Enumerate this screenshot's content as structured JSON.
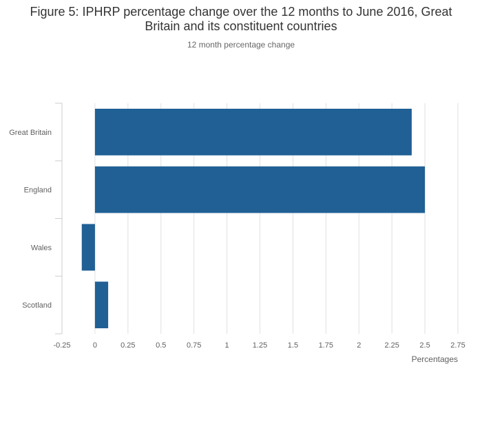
{
  "chart_data": {
    "type": "bar",
    "orientation": "horizontal",
    "title": "Figure 5: IPHRP percentage change over the 12 months to June 2016, Great Britain and its constituent countries",
    "subtitle": "12 month percentage change",
    "categories": [
      "Great Britain",
      "England",
      "Wales",
      "Scotland"
    ],
    "values": [
      2.4,
      2.5,
      -0.1,
      0.1
    ],
    "xlabel": "Percentages",
    "ylabel": "",
    "xlim": [
      -0.25,
      2.75
    ],
    "xticks": [
      -0.25,
      0,
      0.25,
      0.5,
      0.75,
      1,
      1.25,
      1.5,
      1.75,
      2,
      2.25,
      2.5,
      2.75
    ],
    "xtick_labels": [
      "-0.25",
      "0",
      "0.25",
      "0.5",
      "0.75",
      "1",
      "1.25",
      "1.5",
      "1.75",
      "2",
      "2.25",
      "2.5",
      "2.75"
    ],
    "grid": true,
    "bar_color": "#206095",
    "grid_color": "#e0e0e0",
    "axis_color": "#cccccc"
  }
}
